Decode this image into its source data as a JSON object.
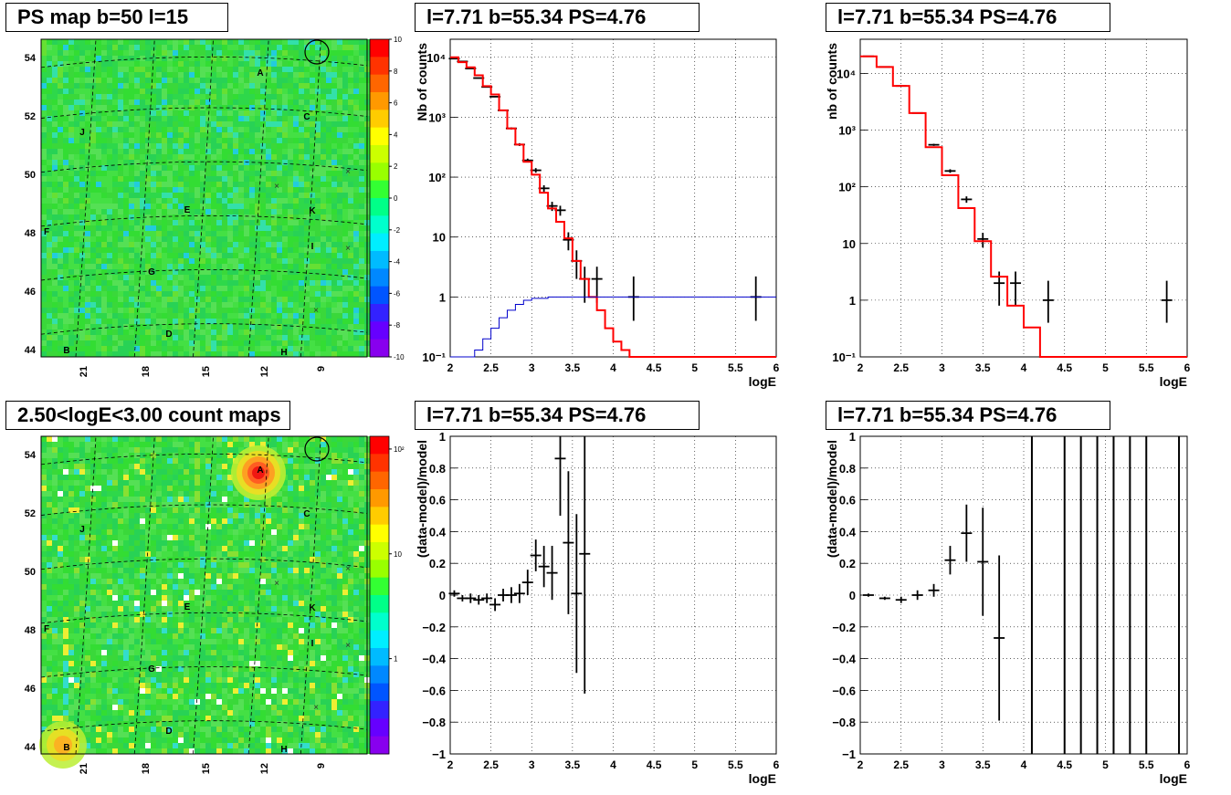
{
  "panels": {
    "map_top_title": "PS map b=50 l=15",
    "map_bottom_title": "2.50<logE<3.00 count maps",
    "spec_title": "l=7.71 b=55.34 PS=4.76"
  },
  "maps": {
    "lat_ticks": [
      "44",
      "46",
      "48",
      "50",
      "52",
      "54"
    ],
    "lon_ticks": [
      "21",
      "18",
      "15",
      "12",
      "9"
    ],
    "sources": [
      "A",
      "B",
      "C",
      "D",
      "E",
      "F",
      "G",
      "H",
      "I",
      "J",
      "K"
    ],
    "top_colorbar_labels": [
      "10",
      "8",
      "6",
      "4",
      "2",
      "0",
      "-2",
      "-4",
      "-6",
      "-8",
      "-10"
    ],
    "bottom_colorbar_labels": [
      "10²",
      "10",
      "1"
    ]
  },
  "colors": {
    "data": "#000000",
    "model": "#ff0000",
    "extra": "#0000cc",
    "map_bg": "#33dd33"
  },
  "chart_data": [
    {
      "type": "line",
      "panel": "top-middle",
      "title": "l=7.71 b=55.34 PS=4.76",
      "xlabel": "logE",
      "ylabel": "Nb of counts",
      "xlim": [
        2,
        6
      ],
      "ylim": [
        0.1,
        20000
      ],
      "yscale": "log",
      "xticks": [
        "2",
        "2.5",
        "3",
        "3.5",
        "4",
        "4.5",
        "5",
        "5.5",
        "6"
      ],
      "yticks": [
        "10⁻¹",
        "1",
        "10",
        "10²",
        "10³",
        "10⁴"
      ],
      "grid": true,
      "series": [
        {
          "role": "data",
          "x": [
            2.05,
            2.15,
            2.25,
            2.35,
            2.45,
            2.55,
            2.65,
            2.75,
            2.85,
            2.95,
            3.05,
            3.15,
            3.25,
            3.35,
            3.45,
            3.55,
            3.65,
            3.8,
            4.25,
            5.75
          ],
          "y": [
            9500,
            8500,
            6500,
            4500,
            3200,
            2200,
            1300,
            650,
            350,
            190,
            130,
            65,
            33,
            28,
            9,
            4,
            2,
            2,
            1,
            1
          ]
        },
        {
          "role": "model",
          "x": [
            2.0,
            2.1,
            2.2,
            2.3,
            2.4,
            2.5,
            2.6,
            2.7,
            2.8,
            2.9,
            3.0,
            3.1,
            3.2,
            3.3,
            3.4,
            3.5,
            3.6,
            3.7,
            3.8,
            3.9,
            4.0,
            4.1,
            4.2,
            6.0
          ],
          "y": [
            10000,
            8300,
            6800,
            5000,
            3300,
            2400,
            1300,
            650,
            350,
            180,
            110,
            55,
            30,
            18,
            9.5,
            4,
            2,
            1,
            0.6,
            0.3,
            0.18,
            0.13,
            0.1,
            0.1
          ]
        },
        {
          "role": "extra",
          "x": [
            2.0,
            2.2,
            2.3,
            2.4,
            2.5,
            2.6,
            2.7,
            2.8,
            2.9,
            3.0,
            3.2,
            6.0
          ],
          "y": [
            0.08,
            0.1,
            0.13,
            0.2,
            0.3,
            0.45,
            0.6,
            0.75,
            0.88,
            0.95,
            1,
            1
          ]
        }
      ]
    },
    {
      "type": "line",
      "panel": "top-right",
      "title": "l=7.71 b=55.34 PS=4.76",
      "xlabel": "logE",
      "ylabel": "nb of counts",
      "xlim": [
        2,
        6
      ],
      "ylim": [
        0.1,
        40000
      ],
      "yscale": "log",
      "xticks": [
        "2",
        "2.5",
        "3",
        "3.5",
        "4",
        "4.5",
        "5",
        "5.5",
        "6"
      ],
      "yticks": [
        "10⁻¹",
        "1",
        "10",
        "10²",
        "10³",
        "10⁴"
      ],
      "grid": true,
      "series": [
        {
          "role": "data",
          "x": [
            2.1,
            2.3,
            2.5,
            2.7,
            2.9,
            3.1,
            3.3,
            3.5,
            3.7,
            3.9,
            4.3,
            5.75
          ],
          "y": [
            20000,
            13000,
            6000,
            2000,
            550,
            190,
            60,
            12,
            2,
            2,
            1,
            1
          ]
        },
        {
          "role": "model",
          "x": [
            2.0,
            2.2,
            2.4,
            2.6,
            2.8,
            3.0,
            3.2,
            3.4,
            3.6,
            3.8,
            4.0,
            4.2,
            6.0
          ],
          "y": [
            20000,
            13000,
            6000,
            2000,
            500,
            160,
            42,
            11,
            2.6,
            0.8,
            0.33,
            0.1,
            0.1
          ]
        }
      ]
    },
    {
      "type": "scatter",
      "panel": "bottom-middle",
      "title": "l=7.71 b=55.34 PS=4.76",
      "xlabel": "logE",
      "ylabel": "(data-model)/model",
      "xlim": [
        2,
        6
      ],
      "ylim": [
        -1,
        1
      ],
      "xticks": [
        "2",
        "2.5",
        "3",
        "3.5",
        "4",
        "4.5",
        "5",
        "5.5",
        "6"
      ],
      "yticks": [
        "−1",
        "−0.8",
        "−0.6",
        "−0.4",
        "−0.2",
        "0",
        "0.2",
        "0.4",
        "0.6",
        "0.8",
        "1"
      ],
      "grid": true,
      "series": [
        {
          "role": "data",
          "x": [
            2.05,
            2.15,
            2.25,
            2.35,
            2.45,
            2.55,
            2.65,
            2.75,
            2.85,
            2.95,
            3.05,
            3.15,
            3.25,
            3.35,
            3.45,
            3.55,
            3.65
          ],
          "y": [
            0.01,
            -0.02,
            -0.02,
            -0.03,
            -0.02,
            -0.06,
            0.0,
            0.0,
            0.01,
            0.08,
            0.25,
            0.18,
            0.14,
            0.86,
            0.33,
            0.01,
            0.26
          ],
          "yerr": [
            0.02,
            0.02,
            0.03,
            0.03,
            0.03,
            0.04,
            0.04,
            0.05,
            0.06,
            0.08,
            0.1,
            0.13,
            0.17,
            0.36,
            0.45,
            0.5,
            0.88
          ]
        }
      ]
    },
    {
      "type": "scatter",
      "panel": "bottom-right",
      "title": "l=7.71 b=55.34 PS=4.76",
      "xlabel": "logE",
      "ylabel": "(data-model)/model",
      "xlim": [
        2,
        6
      ],
      "ylim": [
        -1,
        1
      ],
      "xticks": [
        "2",
        "2.5",
        "3",
        "3.5",
        "4",
        "4.5",
        "5",
        "5.5",
        "6"
      ],
      "yticks": [
        "−1",
        "−0.8",
        "−0.6",
        "−0.4",
        "−0.2",
        "0",
        "0.2",
        "0.4",
        "0.6",
        "0.8",
        "1"
      ],
      "grid": true,
      "series": [
        {
          "role": "data",
          "x": [
            2.1,
            2.3,
            2.5,
            2.7,
            2.9,
            3.1,
            3.3,
            3.5,
            3.7
          ],
          "y": [
            0.0,
            -0.02,
            -0.03,
            0.0,
            0.03,
            0.22,
            0.39,
            0.21,
            -0.27
          ],
          "yerr": [
            0.01,
            0.01,
            0.02,
            0.03,
            0.04,
            0.09,
            0.18,
            0.34,
            0.52
          ]
        },
        {
          "role": "empty_bins_fullrange",
          "x": [
            4.1,
            4.5,
            4.7,
            4.9,
            5.1,
            5.3,
            5.5,
            5.9
          ]
        }
      ]
    }
  ]
}
